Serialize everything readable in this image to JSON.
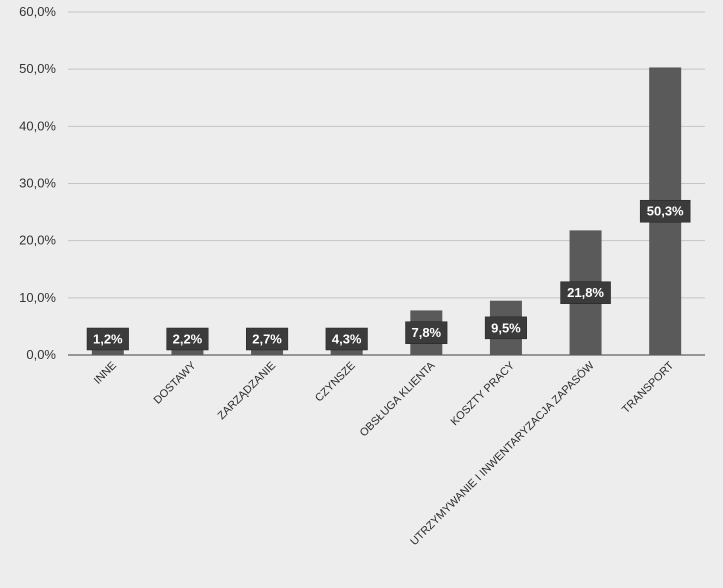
{
  "chart_data": {
    "type": "bar",
    "categories": [
      "INNE",
      "DOSTAWY",
      "ZARZĄDZANIE",
      "CZYNSZE",
      "OBSŁUGA KLIENTA",
      "KOSZTY PRACY",
      "UTRZYMYWANIE I INWENTARYZACJA ZAPASÓW",
      "TRANSPORT"
    ],
    "values": [
      1.2,
      2.2,
      2.7,
      4.3,
      7.8,
      9.5,
      21.8,
      50.3
    ],
    "data_labels": [
      "1,2%",
      "2,2%",
      "2,7%",
      "4,3%",
      "7,8%",
      "9,5%",
      "21,8%",
      "50,3%"
    ],
    "ylim": [
      0,
      60
    ],
    "yticks": [
      0,
      10,
      20,
      30,
      40,
      50,
      60
    ],
    "ytick_labels": [
      "0,0%",
      "10,0%",
      "20,0%",
      "30,0%",
      "40,0%",
      "50,0%",
      "60,0%"
    ],
    "grid": true,
    "legend": "none",
    "colors": {
      "bar": "#5a5a5a",
      "label_box": "#3b3b3b",
      "grid": "#c4c4c4",
      "axis": "#7a7a7a",
      "background": "#ededed"
    }
  }
}
